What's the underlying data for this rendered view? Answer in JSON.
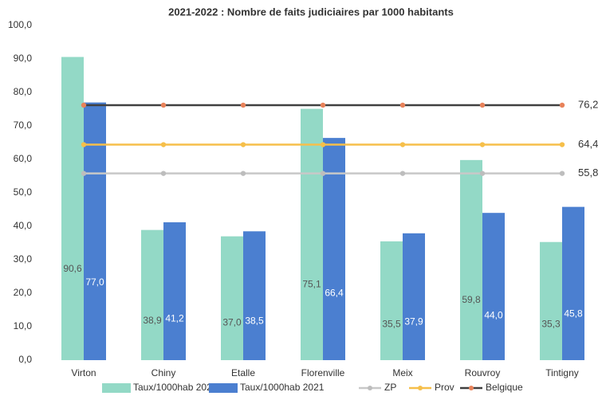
{
  "chart_data": {
    "type": "bar",
    "title": "2021-2022 : Nombre de faits judiciaires par 1000 habitants",
    "categories": [
      "Virton",
      "Chiny",
      "Etalle",
      "Florenville",
      "Meix",
      "Rouvroy",
      "Tintigny"
    ],
    "series": [
      {
        "name": "Taux/1000hab 2022",
        "type": "bar",
        "color": "#93d9c6",
        "label_color": "#555555",
        "values": [
          90.6,
          38.9,
          37.0,
          75.1,
          35.5,
          59.8,
          35.3
        ],
        "value_labels": [
          "90,6",
          "38,9",
          "37,0",
          "75,1",
          "35,5",
          "59,8",
          "35,3"
        ]
      },
      {
        "name": "Taux/1000hab 2021",
        "type": "bar",
        "color": "#4b7fd0",
        "label_color": "#ffffff",
        "values": [
          77.0,
          41.2,
          38.5,
          66.4,
          37.9,
          44.0,
          45.8
        ],
        "value_labels": [
          "77,0",
          "41,2",
          "38,5",
          "66,4",
          "37,9",
          "44,0",
          "45,8"
        ]
      },
      {
        "name": "ZP",
        "type": "line",
        "color": "#c8c8c8",
        "marker_color": "#bdbdbd",
        "values": [
          55.8,
          55.8,
          55.8,
          55.8,
          55.8,
          55.8,
          55.8
        ],
        "value_labels": [
          null,
          null,
          null,
          null,
          null,
          null,
          "55,8"
        ]
      },
      {
        "name": "Prov",
        "type": "line",
        "color": "#f6bf4a",
        "marker_color": "#f6bf4a",
        "values": [
          64.4,
          64.4,
          64.4,
          64.4,
          64.4,
          64.4,
          64.4
        ],
        "value_labels": [
          null,
          null,
          null,
          null,
          null,
          null,
          "64,4"
        ]
      },
      {
        "name": "Belgique",
        "type": "line",
        "color": "#404040",
        "marker_color": "#e8825a",
        "values": [
          76.2,
          76.2,
          76.2,
          76.2,
          76.2,
          76.2,
          76.2
        ],
        "value_labels": [
          null,
          null,
          null,
          null,
          null,
          null,
          "76,2"
        ]
      }
    ],
    "ylim": [
      0,
      100
    ],
    "yticks": [
      {
        "value": 0,
        "label": "0,0"
      },
      {
        "value": 10,
        "label": "10,0"
      },
      {
        "value": 20,
        "label": "20,0"
      },
      {
        "value": 30,
        "label": "30,0"
      },
      {
        "value": 40,
        "label": "40,0"
      },
      {
        "value": 50,
        "label": "50,0"
      },
      {
        "value": 60,
        "label": "60,0"
      },
      {
        "value": 70,
        "label": "70,0"
      },
      {
        "value": 80,
        "label": "80,0"
      },
      {
        "value": 90,
        "label": "90,0"
      },
      {
        "value": 100,
        "label": "100,0"
      }
    ],
    "grid": false,
    "legend": "bottom"
  }
}
